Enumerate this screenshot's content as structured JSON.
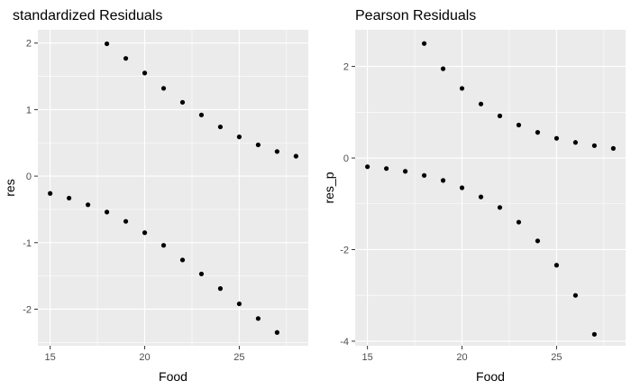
{
  "chart_data": [
    {
      "type": "scatter",
      "title": "standardized Residuals",
      "xlabel": "Food",
      "ylabel": "res",
      "xlim": [
        14.35,
        28.65
      ],
      "ylim": [
        -2.55,
        2.2
      ],
      "xticks": [
        15,
        20,
        25
      ],
      "yticks": [
        -2,
        -1,
        0,
        1,
        2
      ],
      "grid": true,
      "point_color": "#000000",
      "points": [
        {
          "x": 15,
          "y": -0.26
        },
        {
          "x": 16,
          "y": -0.33
        },
        {
          "x": 17,
          "y": -0.43
        },
        {
          "x": 18,
          "y": -0.54
        },
        {
          "x": 19,
          "y": -0.68
        },
        {
          "x": 20,
          "y": -0.85
        },
        {
          "x": 21,
          "y": -1.04
        },
        {
          "x": 22,
          "y": -1.26
        },
        {
          "x": 23,
          "y": -1.47
        },
        {
          "x": 24,
          "y": -1.69
        },
        {
          "x": 25,
          "y": -1.92
        },
        {
          "x": 26,
          "y": -2.14
        },
        {
          "x": 27,
          "y": -2.35
        },
        {
          "x": 18,
          "y": 1.99
        },
        {
          "x": 19,
          "y": 1.77
        },
        {
          "x": 20,
          "y": 1.55
        },
        {
          "x": 21,
          "y": 1.32
        },
        {
          "x": 22,
          "y": 1.11
        },
        {
          "x": 23,
          "y": 0.92
        },
        {
          "x": 24,
          "y": 0.74
        },
        {
          "x": 25,
          "y": 0.59
        },
        {
          "x": 26,
          "y": 0.47
        },
        {
          "x": 27,
          "y": 0.37
        },
        {
          "x": 28,
          "y": 0.3
        }
      ]
    },
    {
      "type": "scatter",
      "title": "Pearson Residuals",
      "xlabel": "Food",
      "ylabel": "res_p",
      "xlim": [
        14.35,
        28.65
      ],
      "ylim": [
        -4.1,
        2.8
      ],
      "xticks": [
        15,
        20,
        25
      ],
      "yticks": [
        -4,
        -2,
        0,
        2
      ],
      "grid": true,
      "point_color": "#000000",
      "points": [
        {
          "x": 15,
          "y": -0.19
        },
        {
          "x": 16,
          "y": -0.23
        },
        {
          "x": 17,
          "y": -0.29
        },
        {
          "x": 18,
          "y": -0.38
        },
        {
          "x": 19,
          "y": -0.49
        },
        {
          "x": 20,
          "y": -0.65
        },
        {
          "x": 21,
          "y": -0.85
        },
        {
          "x": 22,
          "y": -1.08
        },
        {
          "x": 23,
          "y": -1.4
        },
        {
          "x": 24,
          "y": -1.81
        },
        {
          "x": 25,
          "y": -2.34
        },
        {
          "x": 26,
          "y": -3.0
        },
        {
          "x": 27,
          "y": -3.85
        },
        {
          "x": 18,
          "y": 2.5
        },
        {
          "x": 19,
          "y": 1.95
        },
        {
          "x": 20,
          "y": 1.52
        },
        {
          "x": 21,
          "y": 1.18
        },
        {
          "x": 22,
          "y": 0.92
        },
        {
          "x": 23,
          "y": 0.72
        },
        {
          "x": 24,
          "y": 0.56
        },
        {
          "x": 25,
          "y": 0.43
        },
        {
          "x": 26,
          "y": 0.34
        },
        {
          "x": 27,
          "y": 0.27
        },
        {
          "x": 28,
          "y": 0.21
        }
      ]
    }
  ]
}
